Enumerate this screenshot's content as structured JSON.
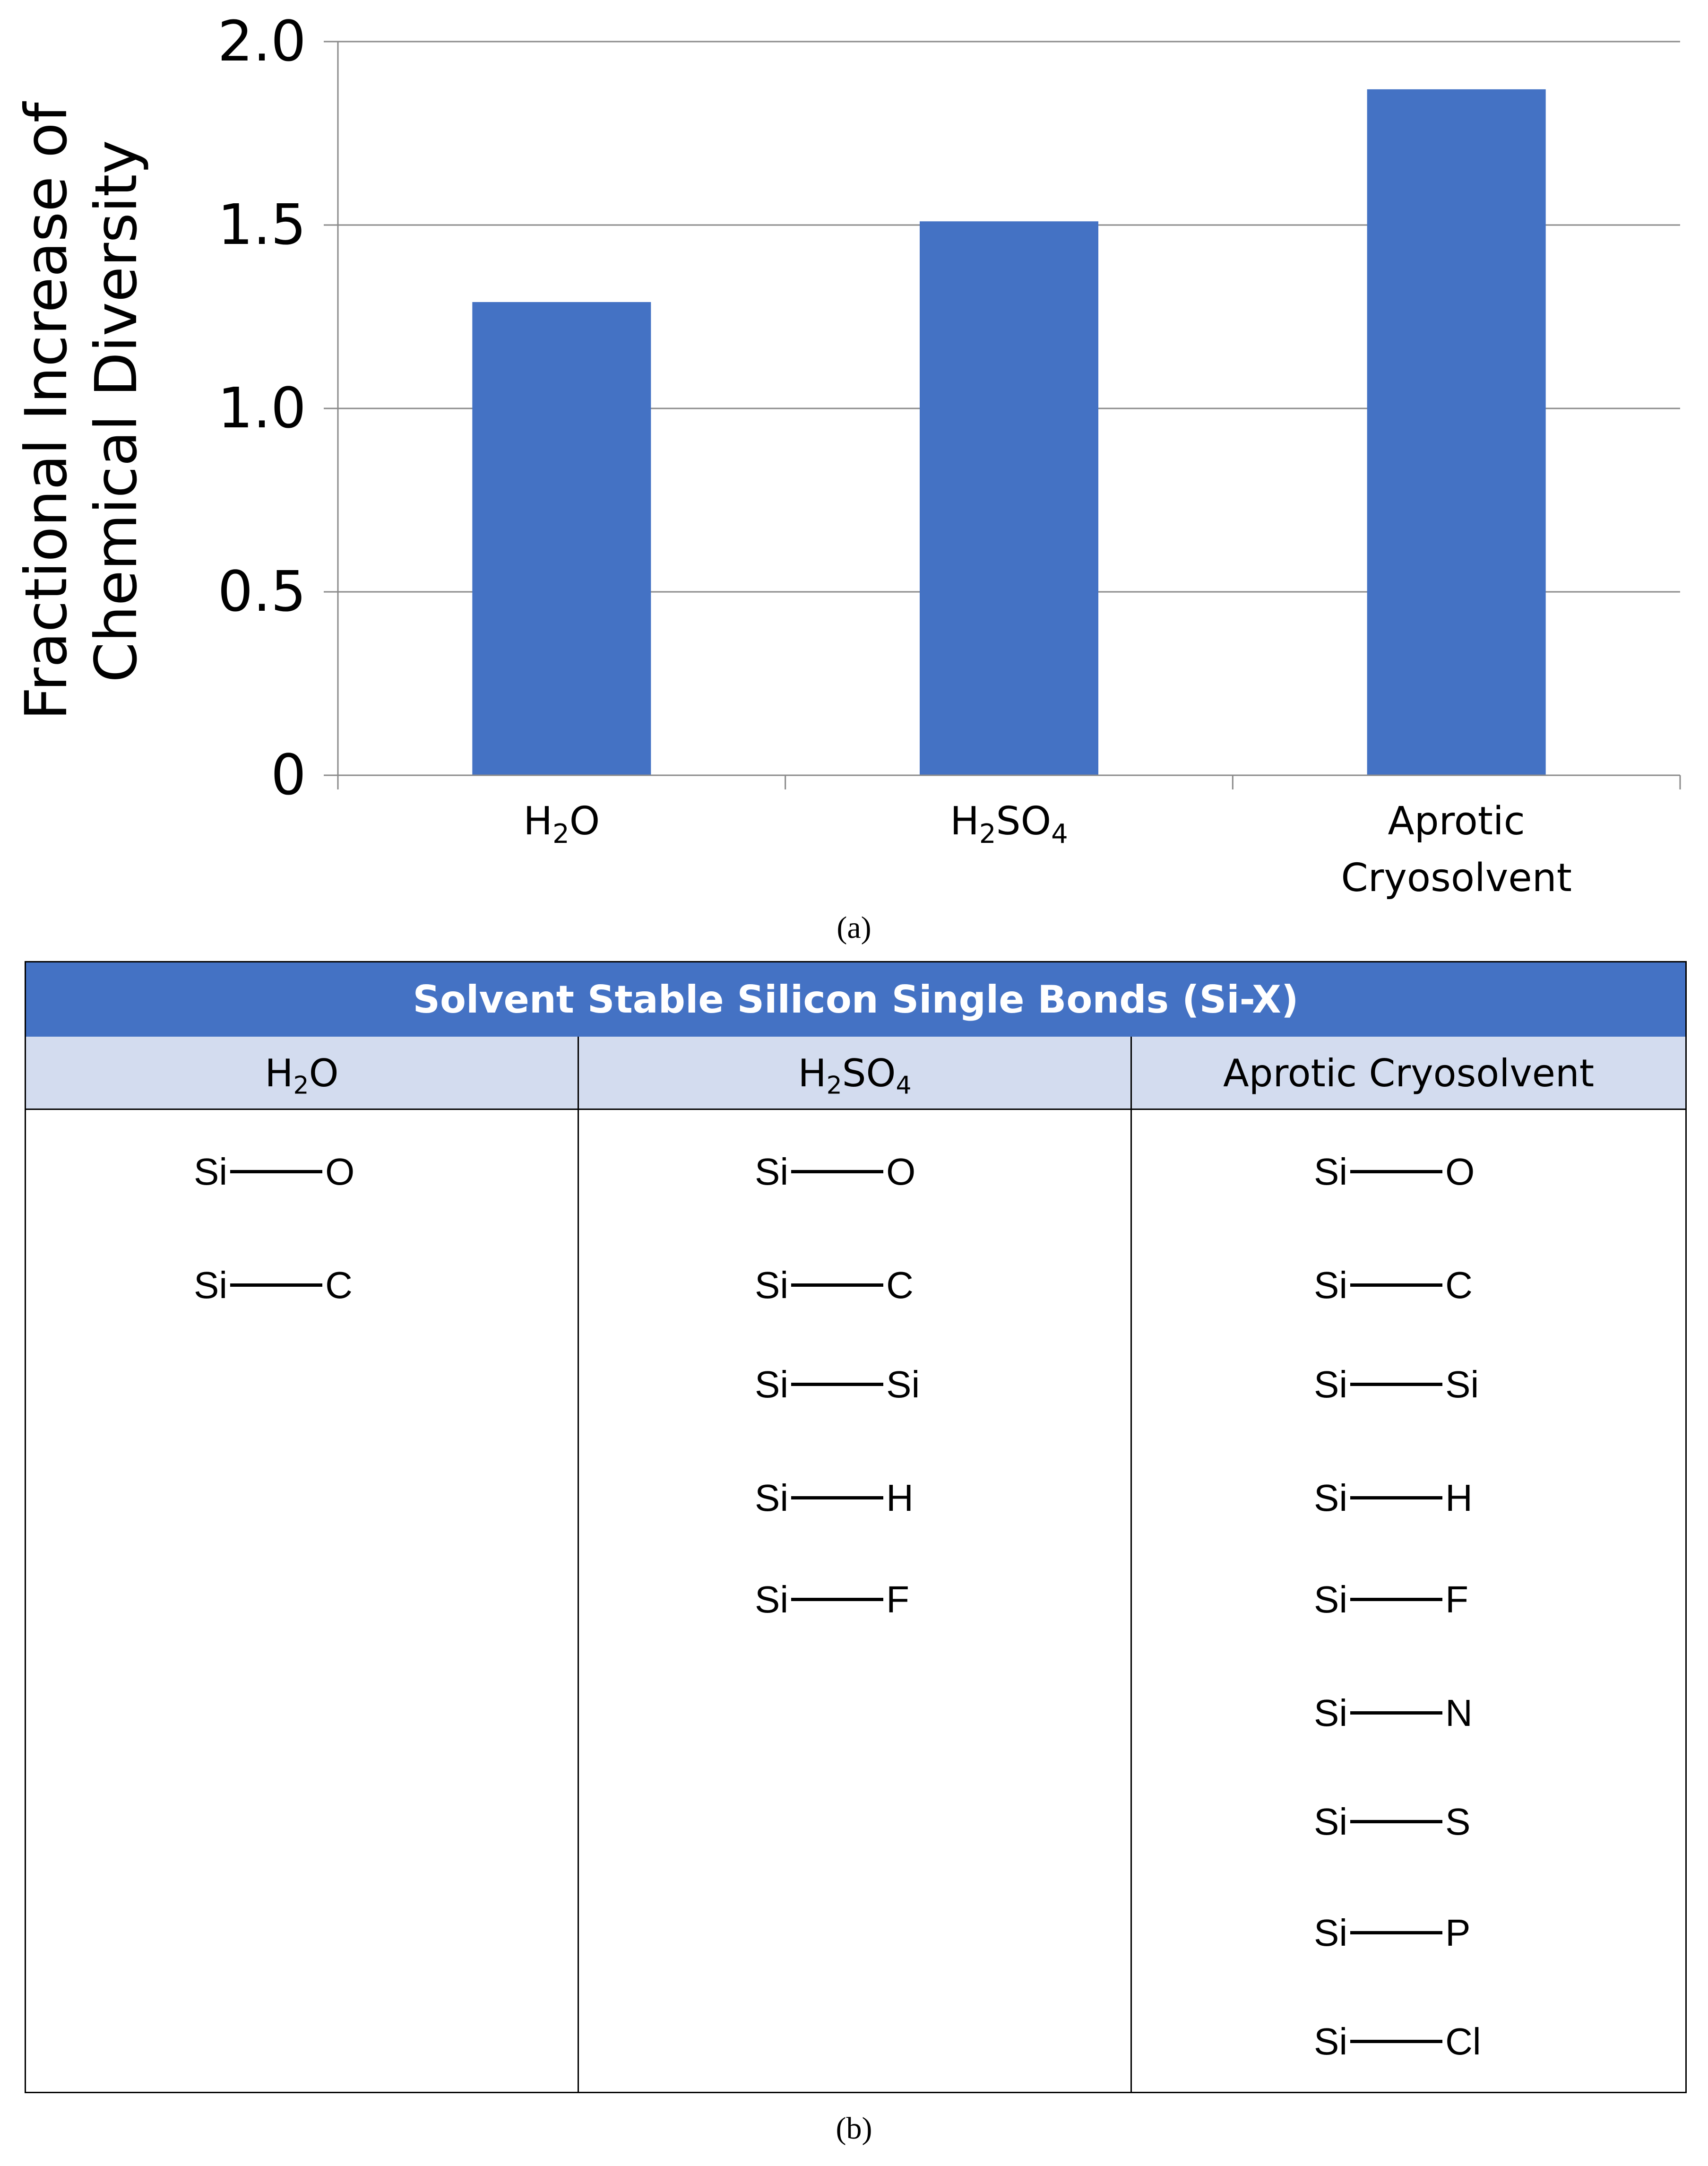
{
  "chart_data": {
    "type": "bar",
    "categories": [
      "H2O",
      "H2SO4",
      "Aprotic Cryosolvent"
    ],
    "category_labels": [
      [
        "H",
        "2",
        "O"
      ],
      [
        "H",
        "2",
        "SO",
        "4"
      ],
      [
        "Aprotic",
        "Cryosolvent"
      ]
    ],
    "values": [
      1.29,
      1.51,
      1.87
    ],
    "ylabel_lines": [
      "Fractional Increase of",
      "Chemical Diversity"
    ],
    "ylim": [
      0,
      2.0
    ],
    "yticks": [
      "0",
      "0.5",
      "1.0",
      "1.5",
      "2.0"
    ],
    "grid": true,
    "bar_color": "#4472c4"
  },
  "caption_a": "(a)",
  "caption_b": "(b)",
  "table": {
    "title": "Solvent Stable Silicon Single Bonds (Si-X)",
    "header_color": "#4472c4",
    "subheader_color": "#d3dcef",
    "columns": [
      {
        "head_main": "H",
        "head_sub": "2",
        "head_tail": "O",
        "head_sub2": "",
        "bonds": [
          [
            "Si",
            "O"
          ],
          [
            "Si",
            "C"
          ]
        ]
      },
      {
        "head_main": "H",
        "head_sub": "2",
        "head_tail": "SO",
        "head_sub2": "4",
        "bonds": [
          [
            "Si",
            "O"
          ],
          [
            "Si",
            "C"
          ],
          [
            "Si",
            "Si"
          ],
          [
            "Si",
            "H"
          ],
          [
            "Si",
            "F"
          ]
        ]
      },
      {
        "head_main": "Aprotic Cryosolvent",
        "head_sub": "",
        "head_tail": "",
        "head_sub2": "",
        "bonds": [
          [
            "Si",
            "O"
          ],
          [
            "Si",
            "C"
          ],
          [
            "Si",
            "Si"
          ],
          [
            "Si",
            "H"
          ],
          [
            "Si",
            "F"
          ],
          [
            "Si",
            "N"
          ],
          [
            "Si",
            "S"
          ],
          [
            "Si",
            "P"
          ],
          [
            "Si",
            "Cl"
          ]
        ]
      }
    ]
  }
}
